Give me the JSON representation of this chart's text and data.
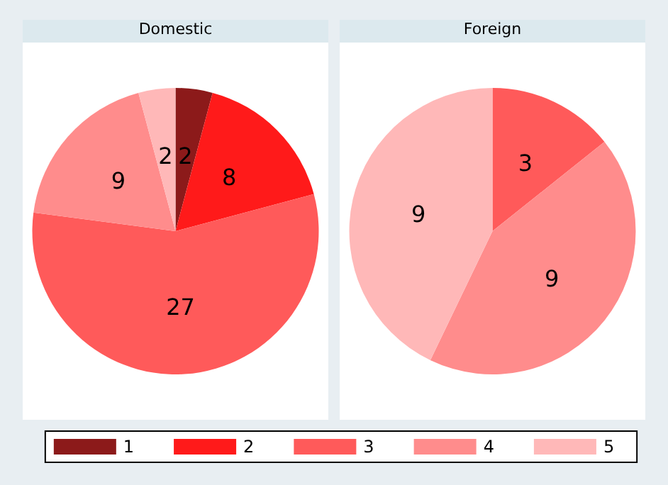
{
  "chart_data": {
    "type": "pie",
    "categories": [
      "1",
      "2",
      "3",
      "4",
      "5"
    ],
    "colors": [
      "#8c1a1a",
      "#ff1a1a",
      "#ff5a5a",
      "#ff8c8c",
      "#ffb8b8"
    ],
    "data_labels": true,
    "legend": "bottom",
    "series": [
      {
        "name": "Domestic",
        "values": [
          2,
          8,
          27,
          9,
          2
        ]
      },
      {
        "name": "Foreign",
        "values": [
          null,
          null,
          3,
          9,
          9
        ]
      }
    ]
  }
}
